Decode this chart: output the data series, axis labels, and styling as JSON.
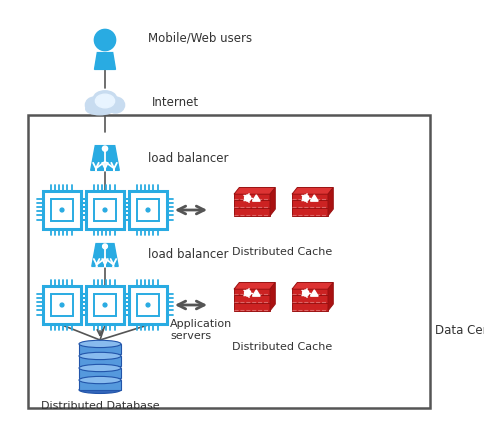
{
  "bg_color": "#ffffff",
  "blue_color": "#29ABE2",
  "red_color": "#CC2222",
  "red_dark": "#991111",
  "red_light": "#EE3333",
  "steel_blue": "#5588CC",
  "steel_mid": "#7AAAD4",
  "steel_light": "#AACCEE",
  "text_color": "#333333",
  "labels": {
    "user": "Mobile/Web users",
    "internet": "Internet",
    "lb1": "load balancer",
    "lb2": "load balancer",
    "app_servers": "Application\nservers",
    "dist_cache1": "Distributed Cache",
    "dist_cache2": "Distributed Cache",
    "dist_db": "Distributed Database",
    "data_center": "Data Center"
  },
  "figsize": [
    4.85,
    4.21
  ],
  "dpi": 100
}
